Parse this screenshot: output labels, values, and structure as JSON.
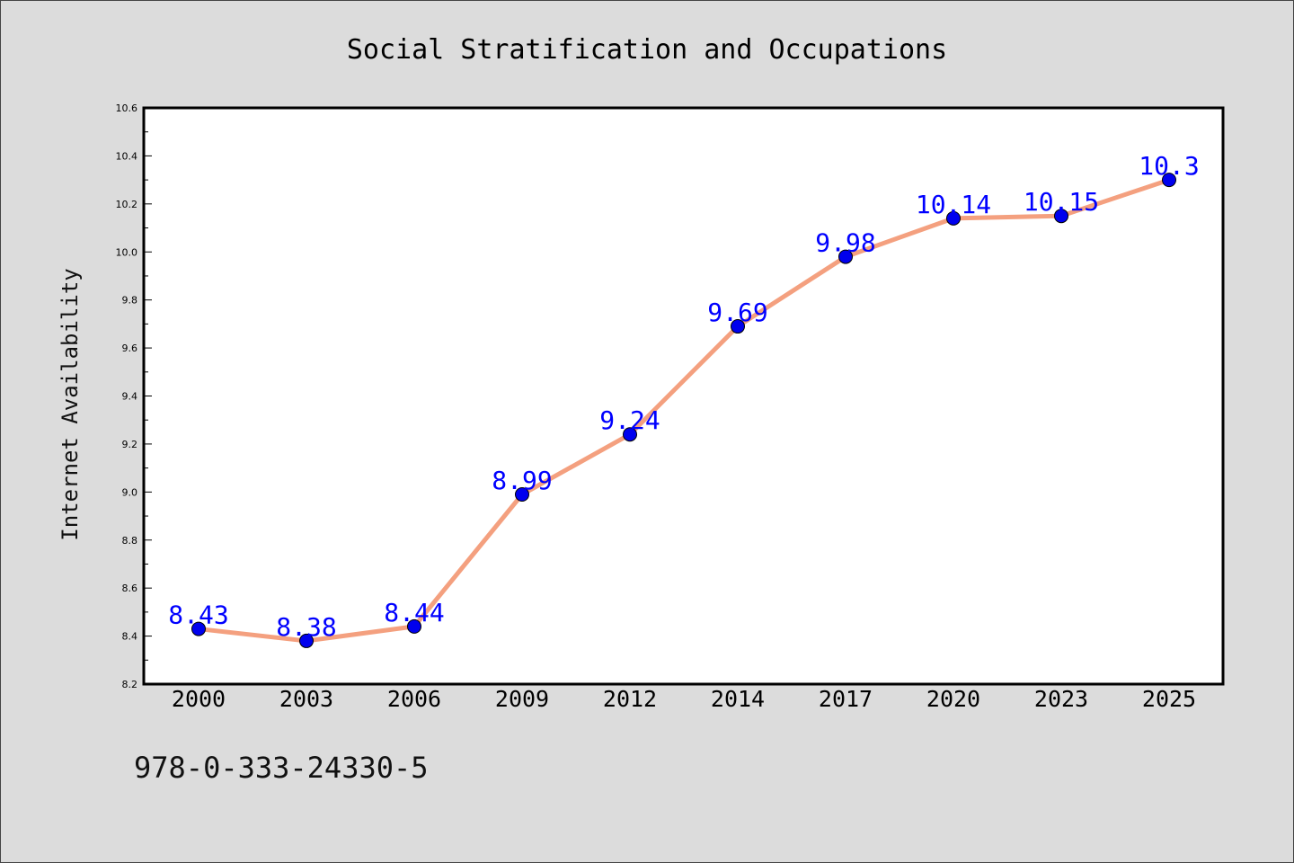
{
  "chart_data": {
    "type": "line",
    "title": "Social Stratification and Occupations",
    "xlabel": "",
    "ylabel": "Internet Availability",
    "categories": [
      "2000",
      "2003",
      "2006",
      "2009",
      "2012",
      "2014",
      "2017",
      "2020",
      "2023",
      "2025"
    ],
    "series": [
      {
        "values": [
          8.43,
          8.38,
          8.44,
          8.99,
          9.24,
          9.69,
          9.98,
          10.14,
          10.15,
          10.3
        ],
        "labels": [
          "8.43",
          "8.38",
          "8.44",
          "8.99",
          "9.24",
          "9.69",
          "9.98",
          "10.14",
          "10.15",
          "10.3"
        ]
      }
    ],
    "ylim": [
      8.2,
      10.6
    ],
    "yticks": [
      "8.2",
      "8.4",
      "8.6",
      "8.8",
      "9.0",
      "9.2",
      "9.4",
      "9.6",
      "9.8",
      "10.0",
      "10.2",
      "10.4",
      "10.6"
    ],
    "grid": false,
    "legend": "none",
    "line_color": "#f4a07f",
    "marker_color": "#0000ee",
    "data_label_color": "#0000ff"
  },
  "footer": {
    "isbn": "978-0-333-24330-5"
  }
}
